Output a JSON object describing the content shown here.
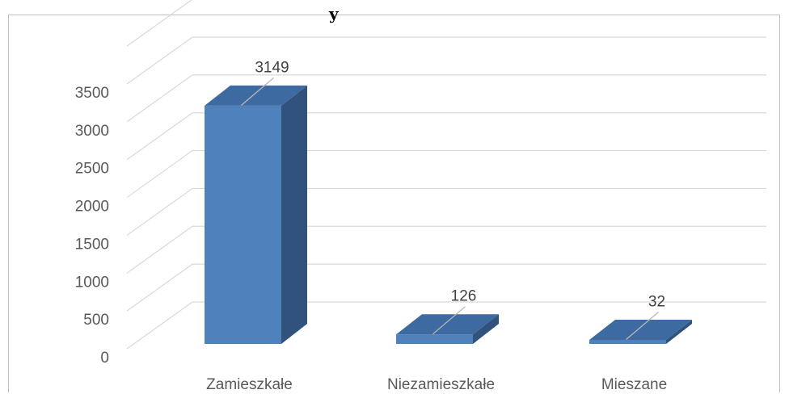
{
  "chart_data": {
    "type": "bar",
    "three_d": true,
    "title_fragment": "y",
    "categories": [
      "Zamieszkałe",
      "Niezamieszkałe",
      "Mieszane"
    ],
    "values": [
      3149,
      126,
      32
    ],
    "data_labels": [
      "3149",
      "126",
      "32"
    ],
    "ylim": [
      0,
      3500
    ],
    "yticks": [
      "0",
      "500",
      "1000",
      "1500",
      "2000",
      "2500",
      "3000",
      "3500"
    ],
    "grid": true,
    "legend": "none",
    "colors": {
      "bar_front": "#4f81bd",
      "bar_side": "#31527c",
      "bar_top": "#3d6aa0",
      "grid": "#d9d9d9"
    }
  }
}
